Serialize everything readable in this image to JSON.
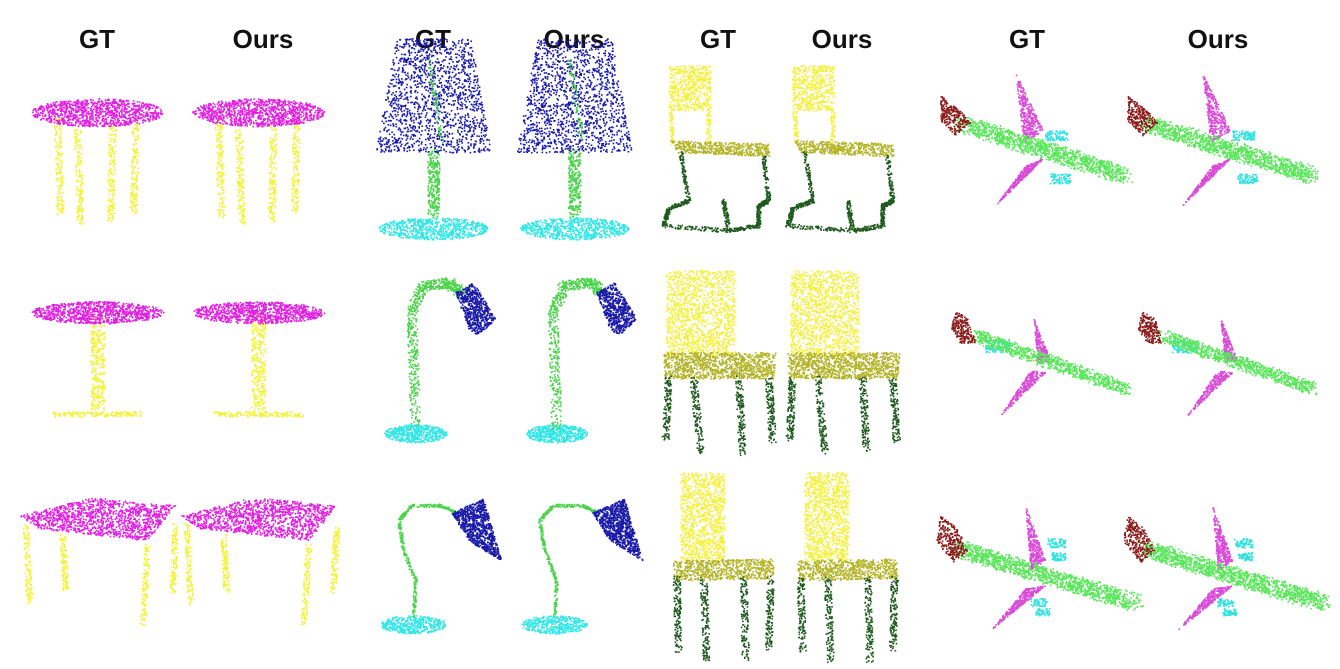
{
  "column_headers": [
    "GT",
    "Ours",
    "GT",
    "Ours",
    "GT",
    "Ours",
    "GT",
    "Ours"
  ],
  "part_colors": {
    "table_top": "#e020e0",
    "table_leg": "#f2f23a",
    "lamp_shade": "#1a1aa8",
    "lamp_body": "#4ad24a",
    "lamp_base": "#30e6e6",
    "chair_back": "#f4f040",
    "chair_seat": "#b4b428",
    "chair_leg": "#1e5a1e",
    "plane_body": "#5ae65a",
    "plane_wing": "#d84cd8",
    "plane_tail": "#8a1a1a",
    "plane_engine": "#30e0e0"
  },
  "rows": [
    {
      "table": "round-pedestal-4-legs",
      "lamp": "trapezoid-shade",
      "chair": "cantilever",
      "plane": "airliner"
    },
    {
      "table": "round-pedestal",
      "lamp": "arc-desk",
      "chair": "upholstered",
      "plane": "jet-tail-engines"
    },
    {
      "table": "rectangular",
      "lamp": "gooseneck",
      "chair": "tall-back",
      "plane": "airliner-4-engine"
    }
  ]
}
